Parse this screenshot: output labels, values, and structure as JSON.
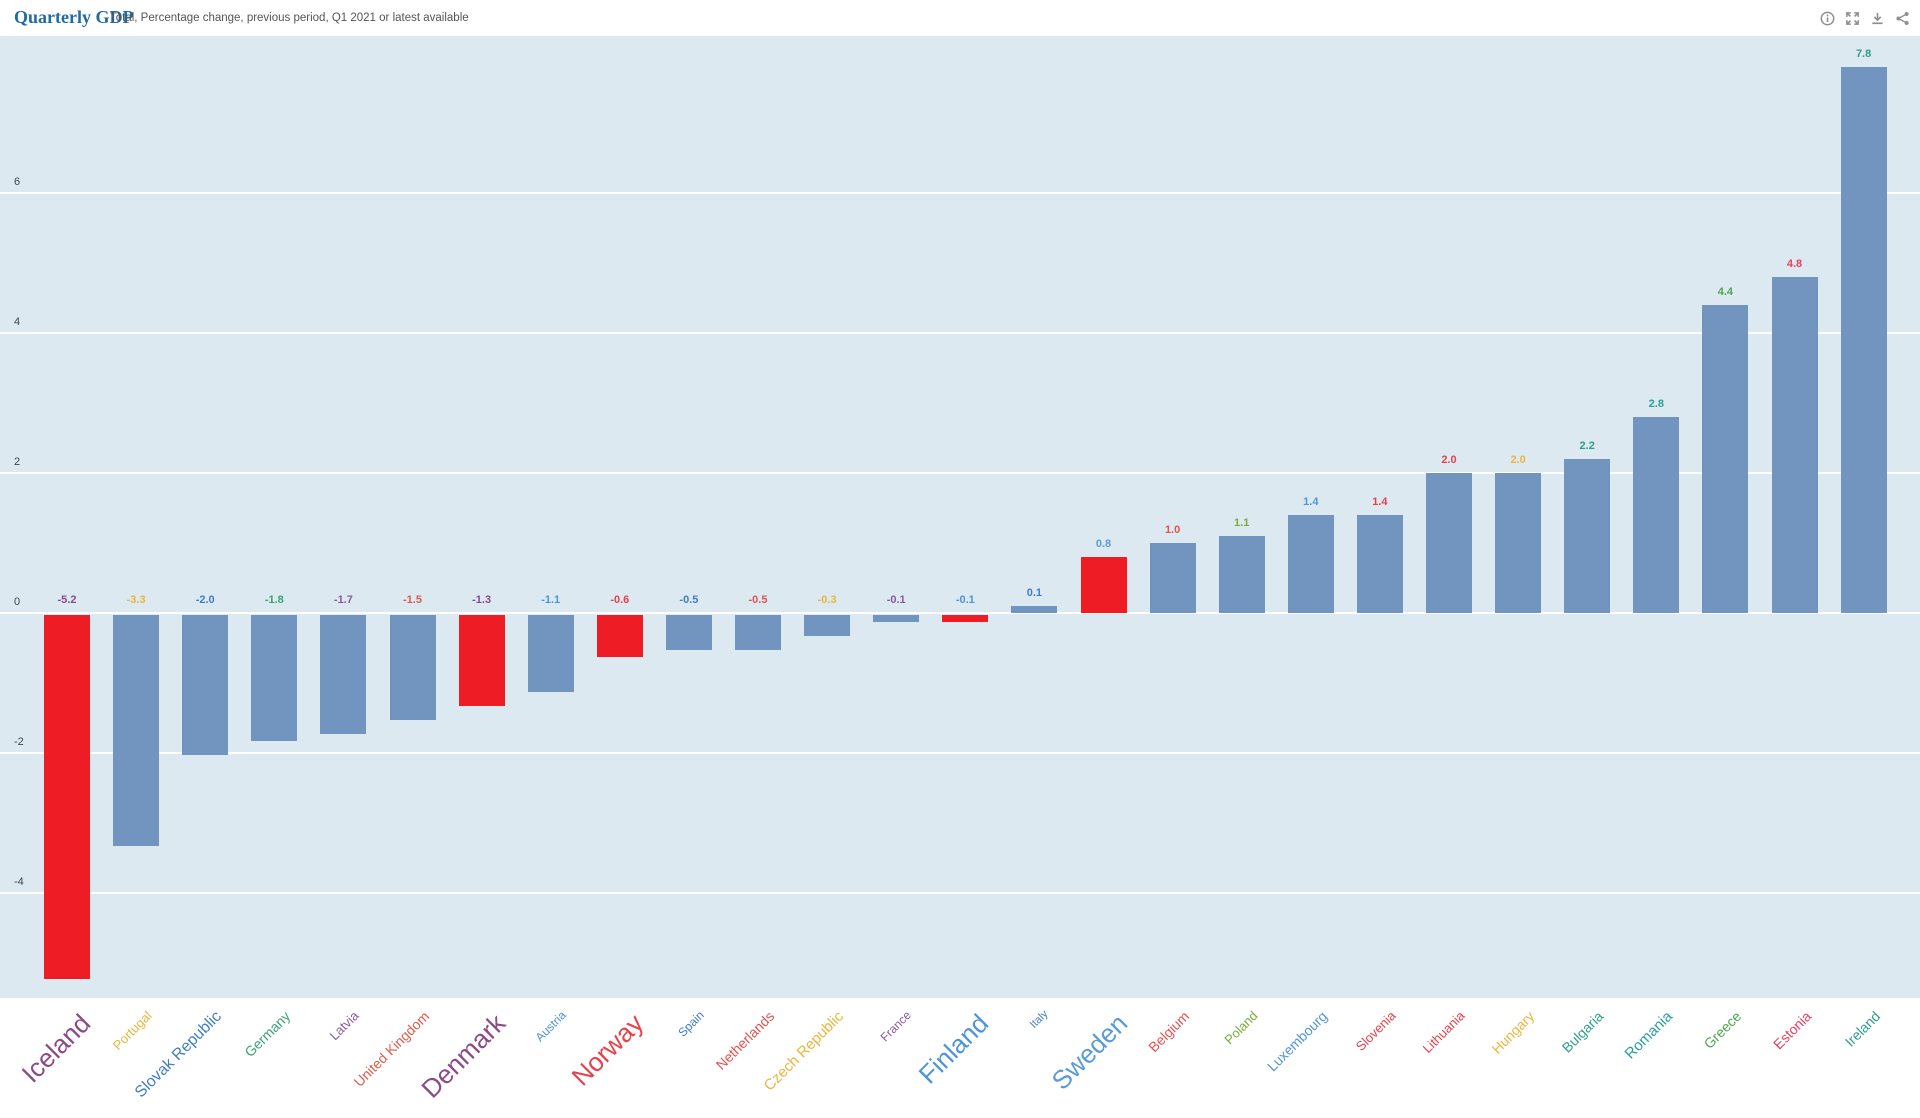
{
  "header": {
    "title": "Quarterly GDP",
    "subtitle": "Total, Percentage change, previous period, Q1 2021 or latest available"
  },
  "toolbar": {
    "icons": [
      "info-icon",
      "fullscreen-icon",
      "download-icon",
      "share-icon"
    ]
  },
  "chart_data": {
    "type": "bar",
    "title": "Quarterly GDP",
    "subtitle": "Total, Percentage change, previous period, Q1 2021 or latest available",
    "categories": [
      "Iceland",
      "Portugal",
      "Slovak Republic",
      "Germany",
      "Latvia",
      "United Kingdom",
      "Denmark",
      "Austria",
      "Norway",
      "Spain",
      "Netherlands",
      "Czech Republic",
      "France",
      "Finland",
      "Italy",
      "Sweden",
      "Belgium",
      "Poland",
      "Luxembourg",
      "Slovenia",
      "Lithuania",
      "Hungary",
      "Bulgaria",
      "Romania",
      "Greece",
      "Estonia",
      "Ireland"
    ],
    "values": [
      -5.2,
      -3.3,
      -2.0,
      -1.8,
      -1.7,
      -1.5,
      -1.3,
      -1.1,
      -0.6,
      -0.5,
      -0.5,
      -0.3,
      -0.1,
      -0.1,
      0.1,
      0.8,
      1.0,
      1.1,
      1.4,
      1.4,
      2.0,
      2.0,
      2.2,
      2.8,
      4.4,
      4.8,
      7.8
    ],
    "highlighted_categories": [
      "Iceland",
      "Denmark",
      "Norway",
      "Finland",
      "Sweden"
    ],
    "category_colors": [
      "#8c4a86",
      "#e9b63c",
      "#3f7fc1",
      "#3ba272",
      "#8a5a9e",
      "#dc5b4c",
      "#8c4a86",
      "#4f94d9",
      "#e8404a",
      "#3f7fc1",
      "#e05252",
      "#e9b63c",
      "#8a5a9e",
      "#4f94d9",
      "#3f7fc1",
      "#5b9bd5",
      "#e05252",
      "#7aab3a",
      "#4f94d9",
      "#e8404a",
      "#e8404a",
      "#e9b63c",
      "#2e9e8a",
      "#2a9d9d",
      "#4ca64c",
      "#e8405e",
      "#2e9e8a"
    ],
    "category_label_sizes": [
      26,
      13,
      16,
      14,
      13,
      14,
      26,
      12,
      26,
      12,
      14,
      15,
      12,
      26,
      11,
      26,
      14,
      13,
      14,
      13,
      13,
      14,
      14,
      15,
      14,
      14,
      14
    ],
    "ylabel": "",
    "xlabel": "",
    "yticks": [
      6,
      4,
      2,
      0,
      -2,
      -4
    ],
    "ylim": [
      -5.6,
      8.2
    ],
    "grid": true,
    "legend": false,
    "colors": {
      "bar_default": "#7295bf",
      "bar_highlight": "#ed1c25",
      "plot_background": "#dce9f1",
      "gridline": "#ffffff",
      "axis_text": "#444444",
      "title": "#1f6a9e",
      "subtitle": "#555555",
      "icon": "#8f8f8f"
    }
  }
}
